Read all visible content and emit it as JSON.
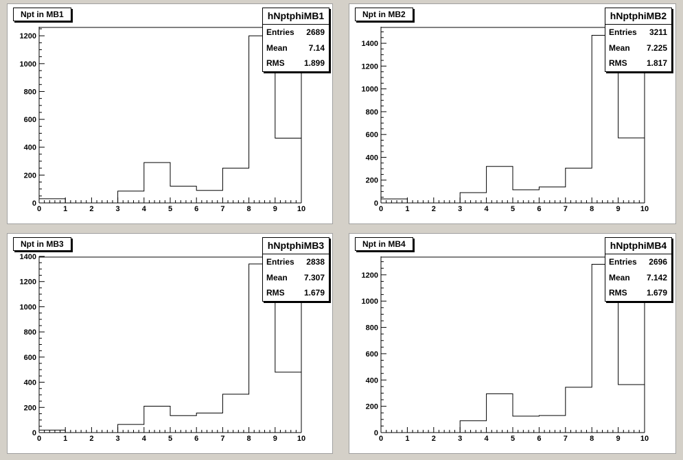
{
  "chart_data": [
    {
      "type": "histogram",
      "title": "Npt in MB1",
      "stats": {
        "name": "hNptphiMB1",
        "entries_label": "Entries",
        "entries": "2689",
        "mean_label": "Mean",
        "mean": "7.14",
        "rms_label": "RMS",
        "rms": "1.899"
      },
      "bin_edges": [
        0,
        1,
        2,
        3,
        4,
        5,
        6,
        7,
        8,
        9,
        10
      ],
      "values": [
        30,
        0,
        0,
        85,
        290,
        120,
        90,
        250,
        1200,
        465
      ],
      "last_bin_note": "bin 9-10 extends to top of frame",
      "xlim": [
        0,
        10
      ],
      "ylim": [
        0,
        1265
      ],
      "x_ticks": [
        "0",
        "1",
        "2",
        "3",
        "4",
        "5",
        "6",
        "7",
        "8",
        "9",
        "10"
      ],
      "y_ticks": [
        0,
        200,
        400,
        600,
        800,
        1000,
        1200
      ],
      "y_tick_labels": [
        "0",
        "200",
        "400",
        "600",
        "800",
        "1000",
        "1200"
      ]
    },
    {
      "type": "histogram",
      "title": "Npt in MB2",
      "stats": {
        "name": "hNptphiMB2",
        "entries_label": "Entries",
        "entries": "3211",
        "mean_label": "Mean",
        "mean": "7.225",
        "rms_label": "RMS",
        "rms": "1.817"
      },
      "bin_edges": [
        0,
        1,
        2,
        3,
        4,
        5,
        6,
        7,
        8,
        9,
        10
      ],
      "values": [
        35,
        0,
        0,
        90,
        320,
        115,
        140,
        305,
        1470,
        570
      ],
      "last_bin_note": "bin 9-10 extends to top of frame",
      "xlim": [
        0,
        10
      ],
      "ylim": [
        0,
        1545
      ],
      "x_ticks": [
        "0",
        "1",
        "2",
        "3",
        "4",
        "5",
        "6",
        "7",
        "8",
        "9",
        "10"
      ],
      "y_ticks": [
        0,
        200,
        400,
        600,
        800,
        1000,
        1200,
        1400
      ],
      "y_tick_labels": [
        "0",
        "200",
        "400",
        "600",
        "800",
        "1000",
        "1200",
        "1400"
      ]
    },
    {
      "type": "histogram",
      "title": "Npt in MB3",
      "stats": {
        "name": "hNptphiMB3",
        "entries_label": "Entries",
        "entries": "2838",
        "mean_label": "Mean",
        "mean": "7.307",
        "rms_label": "RMS",
        "rms": "1.679"
      },
      "bin_edges": [
        0,
        1,
        2,
        3,
        4,
        5,
        6,
        7,
        8,
        9,
        10
      ],
      "values": [
        20,
        0,
        0,
        65,
        210,
        135,
        155,
        305,
        1340,
        480
      ],
      "last_bin_note": "bin 9-10 extends to top of frame",
      "xlim": [
        0,
        10
      ],
      "ylim": [
        0,
        1400
      ],
      "x_ticks": [
        "0",
        "1",
        "2",
        "3",
        "4",
        "5",
        "6",
        "7",
        "8",
        "9",
        "10"
      ],
      "y_ticks": [
        0,
        200,
        400,
        600,
        800,
        1000,
        1200,
        1400
      ],
      "y_tick_labels": [
        "0",
        "200",
        "400",
        "600",
        "800",
        "1000",
        "1200",
        "1400"
      ]
    },
    {
      "type": "histogram",
      "title": "Npt in MB4",
      "stats": {
        "name": "hNptphiMB4",
        "entries_label": "Entries",
        "entries": "2696",
        "mean_label": "Mean",
        "mean": "7.142",
        "rms_label": "RMS",
        "rms": "1.679"
      },
      "bin_edges": [
        0,
        1,
        2,
        3,
        4,
        5,
        6,
        7,
        8,
        9,
        10
      ],
      "values": [
        0,
        0,
        0,
        90,
        295,
        125,
        130,
        345,
        1280,
        365
      ],
      "last_bin_note": "bin 9-10 extends to top of frame",
      "xlim": [
        0,
        10
      ],
      "ylim": [
        0,
        1340
      ],
      "x_ticks": [
        "0",
        "1",
        "2",
        "3",
        "4",
        "5",
        "6",
        "7",
        "8",
        "9",
        "10"
      ],
      "y_ticks": [
        0,
        200,
        400,
        600,
        800,
        1000,
        1200
      ],
      "y_tick_labels": [
        "0",
        "200",
        "400",
        "600",
        "800",
        "1000",
        "1200"
      ]
    }
  ]
}
